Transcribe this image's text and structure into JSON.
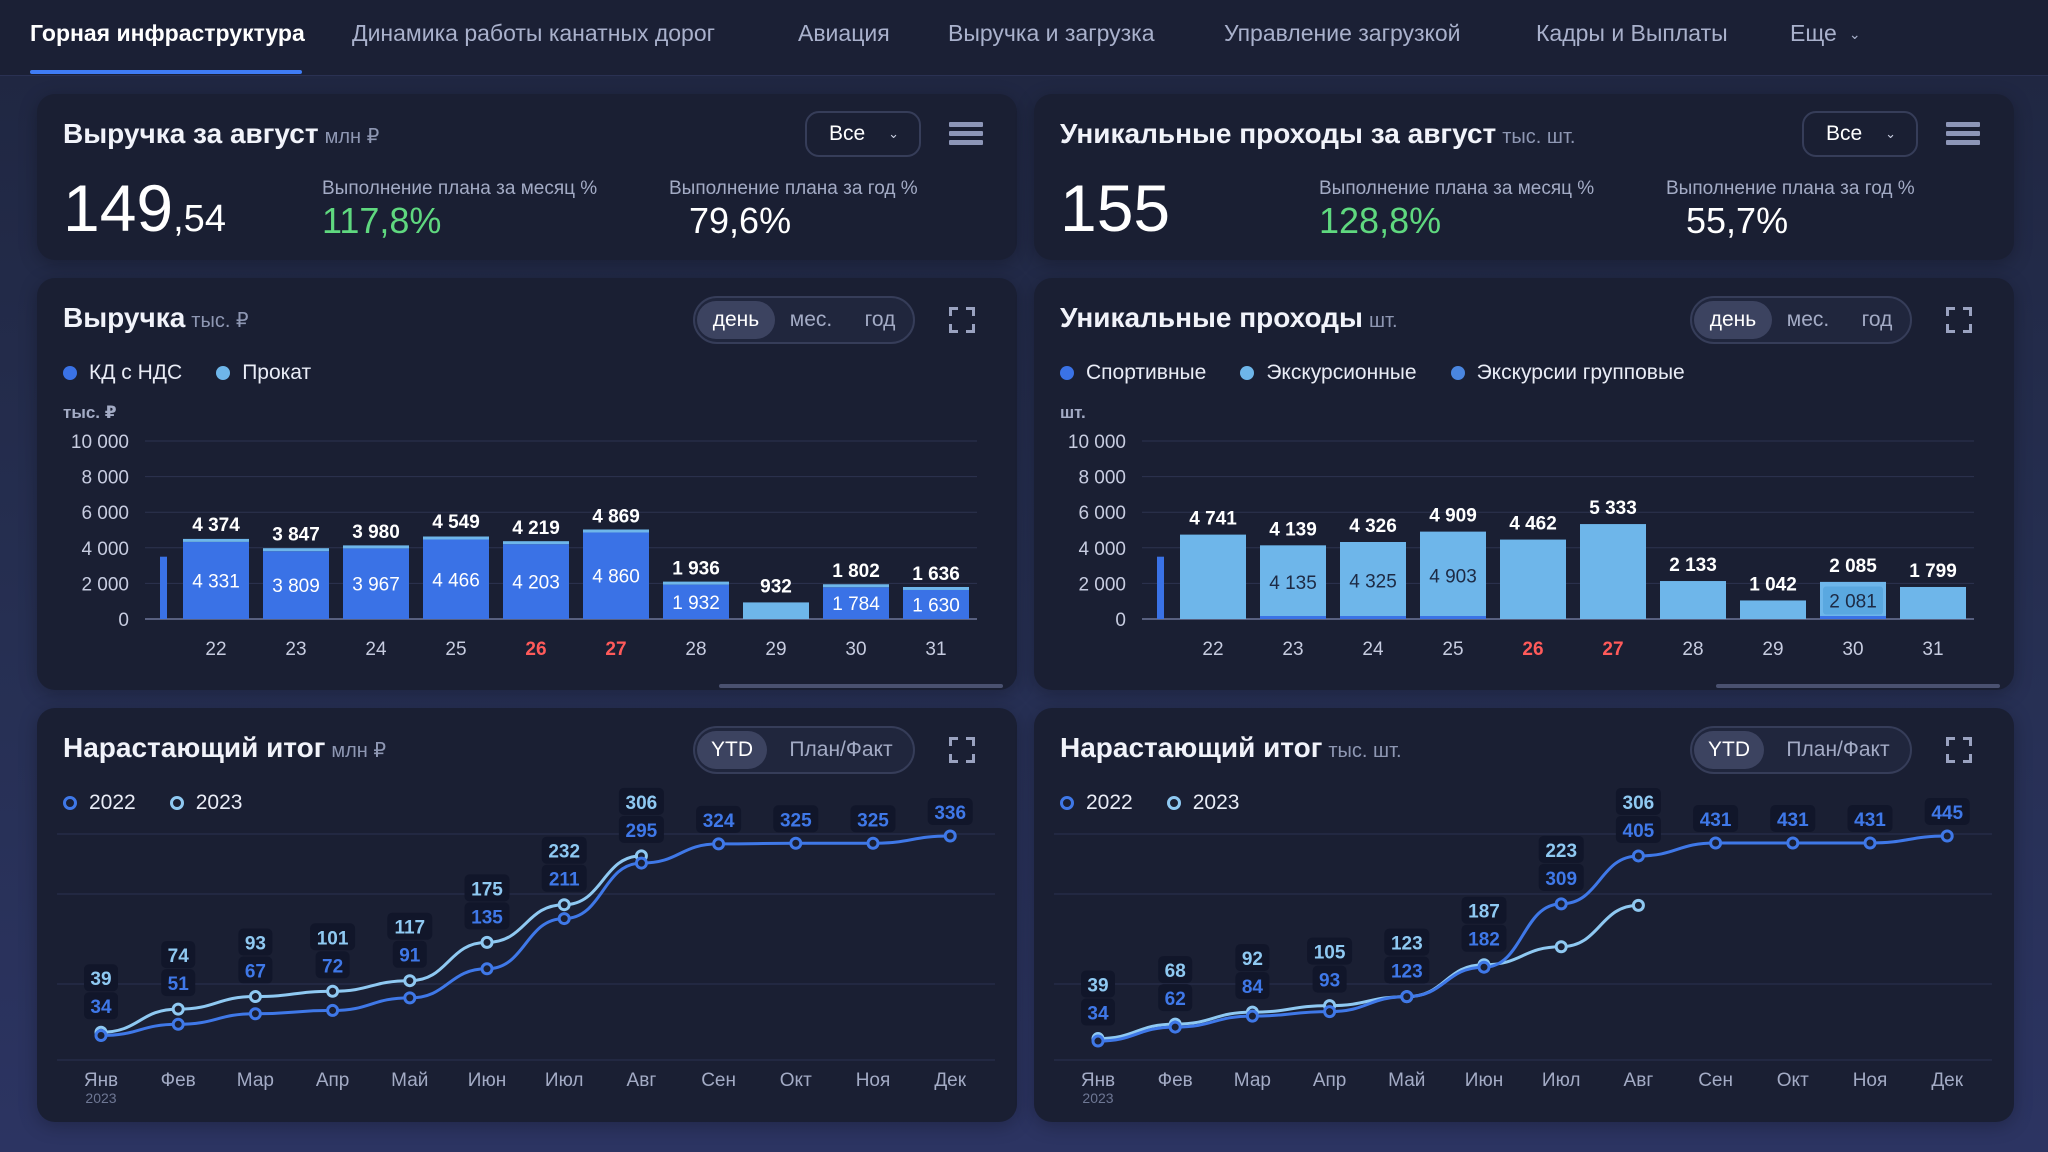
{
  "nav": {
    "tabs": [
      "Горная инфраструктура",
      "Динамика работы канатных дорог",
      "Авиация",
      "Выручка и загрузка",
      "Управление загрузкой",
      "Кадры и Выплаты"
    ],
    "more": "Еще"
  },
  "rev_kpi": {
    "title": "Выручка за август",
    "unit": "млн ₽",
    "filter": "Все",
    "value_int": "149",
    "value_dec": ",54",
    "plan_month_label": "Выполнение плана за месяц %",
    "plan_month_value": "117,8%",
    "plan_year_label": "Выполнение плана за год %",
    "plan_year_value": "79,6%"
  },
  "pass_kpi": {
    "title": "Уникальные проходы за август",
    "unit": "тыс. шт.",
    "filter": "Все",
    "value": "155",
    "plan_month_label": "Выполнение плана за месяц %",
    "plan_month_value": "128,8%",
    "plan_year_label": "Выполнение плана за год %",
    "plan_year_value": "55,7%"
  },
  "rev_daily": {
    "title": "Выручка",
    "unit": "тыс. ₽",
    "periods": [
      "день",
      "мес.",
      "год"
    ],
    "legend": [
      "КД с НДС",
      "Прокат"
    ]
  },
  "pass_daily": {
    "title": "Уникальные проходы",
    "unit": "шт.",
    "periods": [
      "день",
      "мес.",
      "год"
    ],
    "legend": [
      "Спортивные",
      "Экскурсионные",
      "Экскурсии групповые"
    ]
  },
  "rev_cum": {
    "title": "Нарастающий итог",
    "unit": "млн ₽",
    "modes": [
      "YTD",
      "План/Факт"
    ],
    "legend": [
      "2022",
      "2023"
    ]
  },
  "pass_cum": {
    "title": "Нарастающий итог",
    "unit": "тыс. шт.",
    "modes": [
      "YTD",
      "План/Факт"
    ],
    "legend": [
      "2022",
      "2023"
    ]
  },
  "colors": {
    "accent": "#3f7cf5",
    "dark_bar": "#3a72e6",
    "light_bar": "#6eb6ea",
    "green": "#5fd87f",
    "weekend": "#ff5a5a",
    "line_2022": "#3f78e8",
    "line_2023": "#8fc9f2"
  },
  "chart_data": [
    {
      "type": "bar",
      "title": "Выручка",
      "ylabel": "тыс. ₽",
      "ylim": [
        0,
        10000
      ],
      "yticks": [
        "0",
        "2 000",
        "4 000",
        "6 000",
        "8 000",
        "10 000"
      ],
      "categories": [
        "22",
        "23",
        "24",
        "25",
        "26",
        "27",
        "28",
        "29",
        "30",
        "31"
      ],
      "weekend": [
        "26",
        "27"
      ],
      "series": [
        {
          "name": "КД с НДС",
          "values": [
            4331,
            3809,
            3967,
            4466,
            4203,
            4860,
            1932,
            null,
            1784,
            1630
          ]
        },
        {
          "name": "Прокат",
          "values": [
            43,
            38,
            13,
            83,
            16,
            9,
            4,
            932,
            18,
            6
          ]
        }
      ],
      "total_labels": [
        "4 374",
        "3 847",
        "3 980",
        "4 549",
        "4 219",
        "4 869",
        "1 936",
        "932",
        "1 802",
        "1 636"
      ],
      "inner_labels": [
        "4 331",
        "3 809",
        "3 967",
        "4 466",
        "4 203",
        "4 860",
        "1 932",
        "",
        "1 784",
        "1 630"
      ],
      "legend_position": "top-left",
      "grid": true
    },
    {
      "type": "bar",
      "title": "Уникальные проходы",
      "ylabel": "шт.",
      "ylim": [
        0,
        10000
      ],
      "yticks": [
        "0",
        "2 000",
        "4 000",
        "6 000",
        "8 000",
        "10 000"
      ],
      "categories": [
        "22",
        "23",
        "24",
        "25",
        "26",
        "27",
        "28",
        "29",
        "30",
        "31"
      ],
      "weekend": [
        "26",
        "27"
      ],
      "series": [
        {
          "name": "Спортивные",
          "values": [
            4741,
            4139,
            4326,
            4909,
            4462,
            5333,
            2133,
            1042,
            2085,
            1799
          ]
        },
        {
          "name": "Экскурсионные",
          "values": [
            null,
            4135,
            4325,
            4903,
            null,
            null,
            null,
            null,
            2081,
            null
          ]
        }
      ],
      "total_labels": [
        "4 741",
        "4 139",
        "4 326",
        "4 909",
        "4 462",
        "5 333",
        "2 133",
        "1 042",
        "2 085",
        "1 799"
      ],
      "inner_labels": [
        "",
        "4 135",
        "4 325",
        "4 903",
        "",
        "",
        "",
        "",
        "2 081",
        ""
      ],
      "legend_position": "top-left",
      "grid": true
    },
    {
      "type": "line",
      "title": "Нарастающий итог",
      "ylabel": "млн ₽",
      "categories": [
        "Янв",
        "Фев",
        "Мар",
        "Апр",
        "Май",
        "Июн",
        "Июл",
        "Авг",
        "Сен",
        "Окт",
        "Ноя",
        "Дек"
      ],
      "first_label_sub": "2023",
      "series": [
        {
          "name": "2022",
          "values": [
            34,
            51,
            67,
            72,
            91,
            135,
            211,
            295,
            324,
            325,
            325,
            336
          ]
        },
        {
          "name": "2023",
          "values": [
            39,
            74,
            93,
            101,
            117,
            175,
            232,
            306,
            null,
            null,
            null,
            null
          ]
        }
      ],
      "legend_position": "top-left",
      "grid": true
    },
    {
      "type": "line",
      "title": "Нарастающий итог",
      "ylabel": "тыс. шт.",
      "categories": [
        "Янв",
        "Фев",
        "Мар",
        "Апр",
        "Май",
        "Июн",
        "Июл",
        "Авг",
        "Сен",
        "Окт",
        "Ноя",
        "Дек"
      ],
      "first_label_sub": "2023",
      "series": [
        {
          "name": "2022",
          "values": [
            34,
            62,
            84,
            93,
            123,
            182,
            309,
            405,
            431,
            431,
            431,
            445
          ]
        },
        {
          "name": "2023",
          "values": [
            39,
            68,
            92,
            105,
            123,
            187,
            223,
            306,
            null,
            null,
            null,
            null
          ]
        }
      ],
      "legend_position": "top-left",
      "grid": true
    }
  ]
}
